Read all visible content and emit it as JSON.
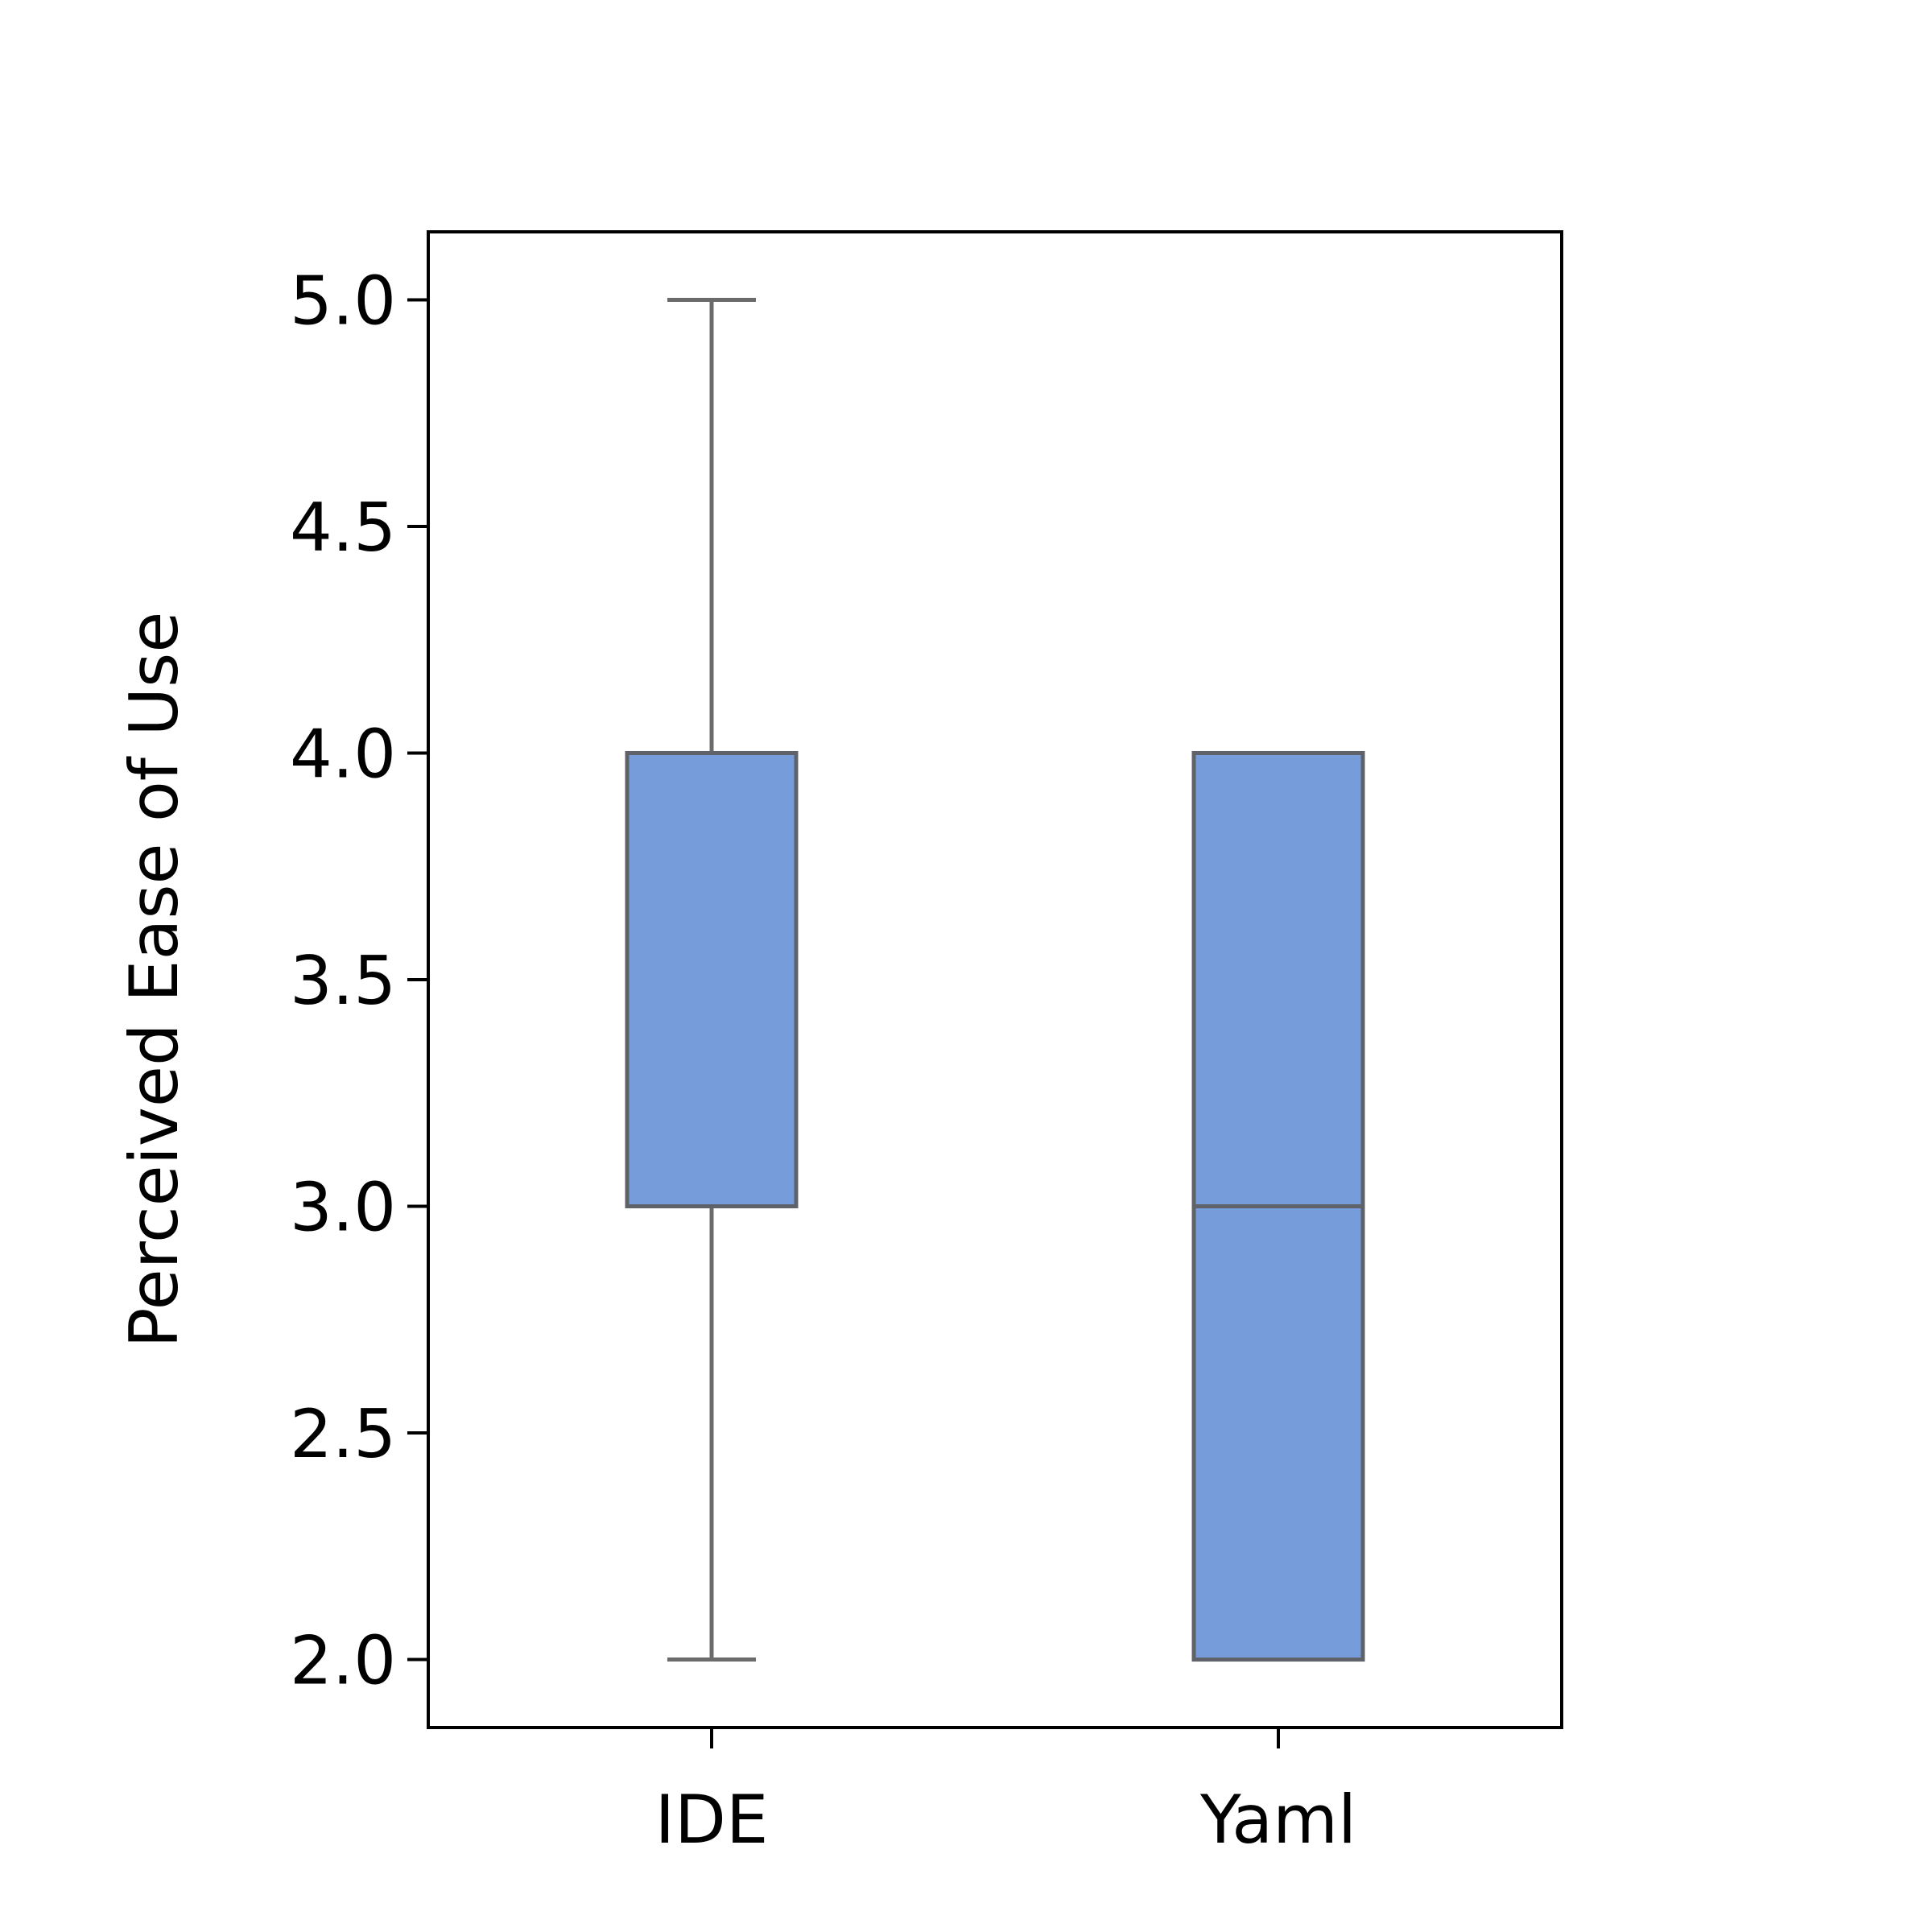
{
  "chart_data": {
    "type": "box",
    "categories": [
      "IDE",
      "Yaml"
    ],
    "series": [
      {
        "boxes": [
          {
            "category": "IDE",
            "whisker_low": 2.0,
            "q1": 3.0,
            "median": 4.0,
            "q3": 4.0,
            "whisker_high": 5.0
          },
          {
            "category": "Yaml",
            "whisker_low": 2.0,
            "q1": 2.0,
            "median": 3.0,
            "q3": 4.0,
            "whisker_high": 4.0
          }
        ]
      }
    ],
    "title": "",
    "xlabel": "",
    "ylabel": "Perceived Ease of Use",
    "ylim": [
      1.85,
      5.15
    ],
    "yticks": [
      2.0,
      2.5,
      3.0,
      3.5,
      4.0,
      4.5,
      5.0
    ],
    "ytick_labels": [
      "2.0",
      "2.5",
      "3.0",
      "3.5",
      "4.0",
      "4.5",
      "5.0"
    ],
    "grid": false,
    "colors": {
      "box_fill": "#779cda",
      "box_edge": "#5f6369",
      "whisker": "#6b6b6b",
      "axes": "#000000"
    }
  }
}
